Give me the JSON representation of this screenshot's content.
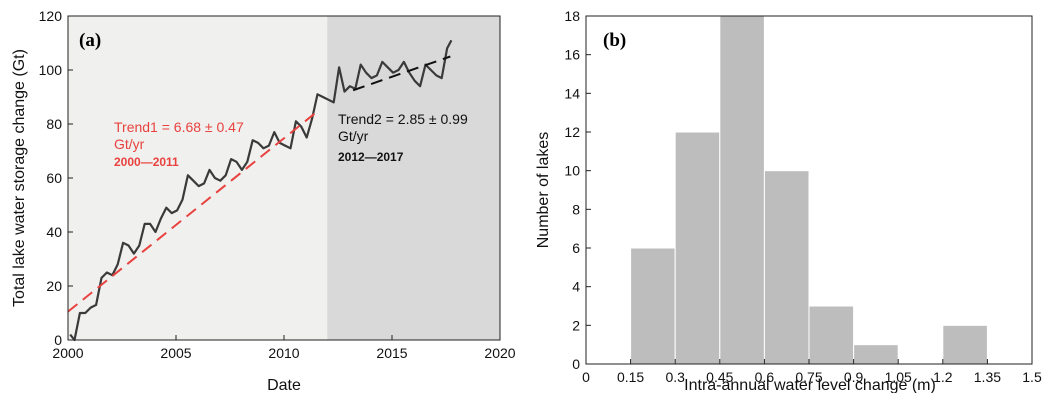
{
  "colors": {
    "trend1": "#e8423f",
    "trend2": "#111111",
    "series": "#3a3a3a",
    "bar_fill": "#bdbdbd",
    "shade_period1": "#f0f0ee",
    "shade_period2": "#d9d9d9"
  },
  "chart_data": [
    {
      "type": "line",
      "panel_label": "(a)",
      "xlabel": "Date",
      "ylabel": "Total lake water storage change  (Gt)",
      "xlim": [
        2000,
        2020
      ],
      "ylim": [
        0,
        120
      ],
      "xticks": [
        2000,
        2005,
        2010,
        2015,
        2020
      ],
      "yticks": [
        0,
        20,
        40,
        60,
        80,
        100,
        120
      ],
      "shaded_periods": [
        {
          "from": 2000,
          "to": 2012,
          "color": "#f0f0ee"
        },
        {
          "from": 2012,
          "to": 2020,
          "color": "#d9d9d9"
        }
      ],
      "series": [
        {
          "x": [
            2000.1,
            2000.3,
            2000.55,
            2000.8,
            2001.05,
            2001.3,
            2001.55,
            2001.8,
            2002.05,
            2002.3,
            2002.55,
            2002.8,
            2003.05,
            2003.3,
            2003.55,
            2003.8,
            2004.05,
            2004.3,
            2004.55,
            2004.8,
            2005.05,
            2005.3,
            2005.55,
            2005.8,
            2006.05,
            2006.3,
            2006.55,
            2006.8,
            2007.05,
            2007.3,
            2007.55,
            2007.8,
            2008.05,
            2008.3,
            2008.55,
            2008.8,
            2009.05,
            2009.3,
            2009.55,
            2009.8,
            2010.05,
            2010.3,
            2010.55,
            2010.8,
            2011.05,
            2011.3,
            2011.55,
            2011.8,
            2012.05,
            2012.3,
            2012.55,
            2012.8,
            2013.05,
            2013.3,
            2013.55,
            2013.8,
            2014.05,
            2014.3,
            2014.55,
            2014.8,
            2015.05,
            2015.3,
            2015.55,
            2015.8,
            2016.05,
            2016.3,
            2016.55,
            2016.8,
            2017.05,
            2017.3,
            2017.55,
            2017.75
          ],
          "y": [
            2,
            0,
            10,
            10,
            12,
            13,
            23,
            25,
            24,
            28,
            36,
            35,
            32,
            35,
            43,
            43,
            40,
            45,
            49,
            47,
            48,
            52,
            61,
            59,
            57,
            58,
            63,
            60,
            59,
            61,
            67,
            66,
            63,
            66,
            74,
            73,
            71,
            72,
            77,
            73,
            72,
            71,
            81,
            79,
            75,
            82,
            91,
            90,
            89,
            88,
            101,
            92,
            94,
            93,
            102,
            99,
            97,
            98,
            103,
            101,
            99,
            100,
            103,
            99,
            96,
            94,
            102,
            100,
            98,
            97,
            108,
            111
          ]
        }
      ],
      "trends": [
        {
          "label": "Trend1 = 6.68 ± 0.47",
          "unit": "Gt/yr",
          "period": "2000—2011",
          "color": "#e8423f",
          "dashed": true,
          "x": [
            2000,
            2011.6
          ],
          "y": [
            10.5,
            85
          ]
        },
        {
          "label": "Trend2 = 2.85 ± 0.99",
          "unit": "Gt/yr",
          "period": "2012—2017",
          "color": "#111111",
          "dashed": true,
          "x": [
            2013.2,
            2017.7
          ],
          "y": [
            92.5,
            105
          ]
        }
      ]
    },
    {
      "type": "bar",
      "panel_label": "(b)",
      "xlabel": "Intra-annual water level change  (m)",
      "ylabel": "Number of lakes",
      "xlim": [
        0,
        1.5
      ],
      "ylim": [
        0,
        18
      ],
      "xticks": [
        "0",
        "0.15",
        "0.3",
        "0.45",
        "0.6",
        "0.75",
        "0.9",
        "1.05",
        "1.2",
        "1.35",
        "1.5"
      ],
      "yticks": [
        0,
        2,
        4,
        6,
        8,
        10,
        12,
        14,
        16,
        18
      ],
      "bins": [
        {
          "from": 0.15,
          "to": 0.3,
          "count": 6
        },
        {
          "from": 0.3,
          "to": 0.45,
          "count": 12
        },
        {
          "from": 0.45,
          "to": 0.6,
          "count": 18
        },
        {
          "from": 0.6,
          "to": 0.75,
          "count": 10
        },
        {
          "from": 0.75,
          "to": 0.9,
          "count": 3
        },
        {
          "from": 0.9,
          "to": 1.05,
          "count": 1
        },
        {
          "from": 1.05,
          "to": 1.2,
          "count": 0
        },
        {
          "from": 1.2,
          "to": 1.35,
          "count": 2
        }
      ]
    }
  ]
}
